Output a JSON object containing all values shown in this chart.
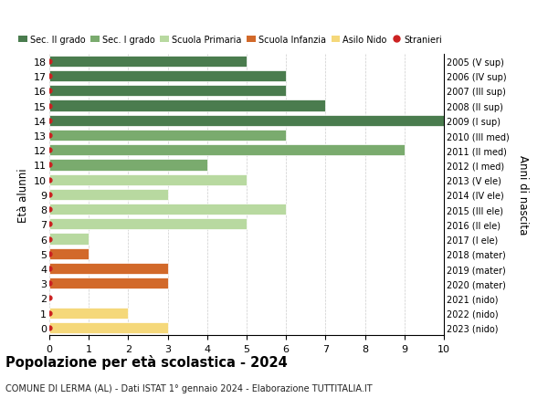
{
  "ages": [
    0,
    1,
    2,
    3,
    4,
    5,
    6,
    7,
    8,
    9,
    10,
    11,
    12,
    13,
    14,
    15,
    16,
    17,
    18
  ],
  "years": [
    "2023 (nido)",
    "2022 (nido)",
    "2021 (nido)",
    "2020 (mater)",
    "2019 (mater)",
    "2018 (mater)",
    "2017 (I ele)",
    "2016 (II ele)",
    "2015 (III ele)",
    "2014 (IV ele)",
    "2013 (V ele)",
    "2012 (I med)",
    "2011 (II med)",
    "2010 (III med)",
    "2009 (I sup)",
    "2008 (II sup)",
    "2007 (III sup)",
    "2006 (IV sup)",
    "2005 (V sup)"
  ],
  "values": [
    3,
    2,
    0,
    3,
    3,
    1,
    1,
    5,
    6,
    3,
    5,
    4,
    9,
    6,
    10,
    7,
    6,
    6,
    5
  ],
  "categories": [
    "Asilo Nido",
    "Asilo Nido",
    "Asilo Nido",
    "Scuola Infanzia",
    "Scuola Infanzia",
    "Scuola Infanzia",
    "Scuola Primaria",
    "Scuola Primaria",
    "Scuola Primaria",
    "Scuola Primaria",
    "Scuola Primaria",
    "Sec. I grado",
    "Sec. I grado",
    "Sec. I grado",
    "Sec. II grado",
    "Sec. II grado",
    "Sec. II grado",
    "Sec. II grado",
    "Sec. II grado"
  ],
  "colors": {
    "Sec. II grado": "#4a7c4e",
    "Sec. I grado": "#7aab6e",
    "Scuola Primaria": "#b8d9a0",
    "Scuola Infanzia": "#d2692a",
    "Asilo Nido": "#f5d87a"
  },
  "legend_labels": [
    "Sec. II grado",
    "Sec. I grado",
    "Scuola Primaria",
    "Scuola Infanzia",
    "Asilo Nido",
    "Stranieri"
  ],
  "legend_colors": [
    "#4a7c4e",
    "#7aab6e",
    "#b8d9a0",
    "#d2692a",
    "#f5d87a",
    "#cc2222"
  ],
  "dot_color": "#cc2222",
  "title": "Popolazione per età scolastica - 2024",
  "subtitle": "COMUNE DI LERMA (AL) - Dati ISTAT 1° gennaio 2024 - Elaborazione TUTTITALIA.IT",
  "ylabel_left": "Età alunni",
  "ylabel_right": "Anni di nascita",
  "xlim": [
    0,
    10
  ],
  "xticks": [
    0,
    1,
    2,
    3,
    4,
    5,
    6,
    7,
    8,
    9,
    10
  ],
  "bar_height": 0.75,
  "background_color": "#ffffff",
  "grid_color": "#cccccc"
}
